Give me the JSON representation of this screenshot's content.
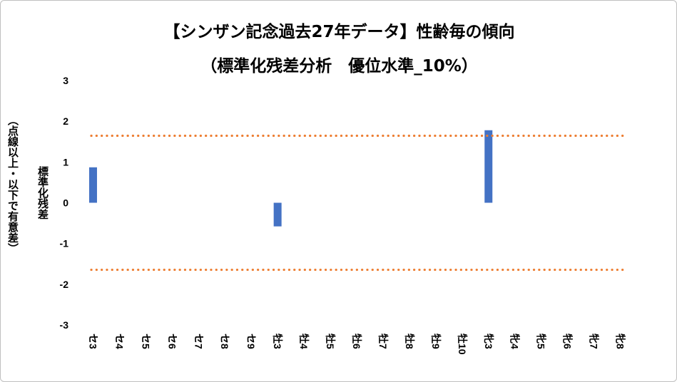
{
  "chart_data": {
    "type": "bar",
    "title_line1": "【シンザン記念過去27年データ】性齢毎の傾向",
    "title_line2": "（標準化残差分析　優位水準_10%）",
    "ylabel_line1": "標準化残差",
    "ylabel_line2": "（点線以上・以下で有意差）",
    "categories": [
      "セ3",
      "セ4",
      "セ5",
      "セ6",
      "セ7",
      "セ8",
      "セ9",
      "牡3",
      "牡4",
      "牡5",
      "牡6",
      "牡7",
      "牡8",
      "牡9",
      "牡10",
      "牝3",
      "牝4",
      "牝5",
      "牝6",
      "牝7",
      "牝8"
    ],
    "values": [
      0.87,
      0,
      0,
      0,
      0,
      0,
      0,
      -0.58,
      0,
      0,
      0,
      0,
      0,
      0,
      0,
      1.78,
      0,
      0,
      0,
      0,
      0
    ],
    "thresholds": [
      1.645,
      -1.645
    ],
    "ylim": [
      -3,
      3
    ],
    "yticks": [
      "3",
      "2",
      "1",
      "0",
      "-1",
      "-2",
      "-3"
    ],
    "bar_color": "#4472c4",
    "threshold_color": "#ed7d31",
    "grid": false,
    "legend": "none"
  }
}
